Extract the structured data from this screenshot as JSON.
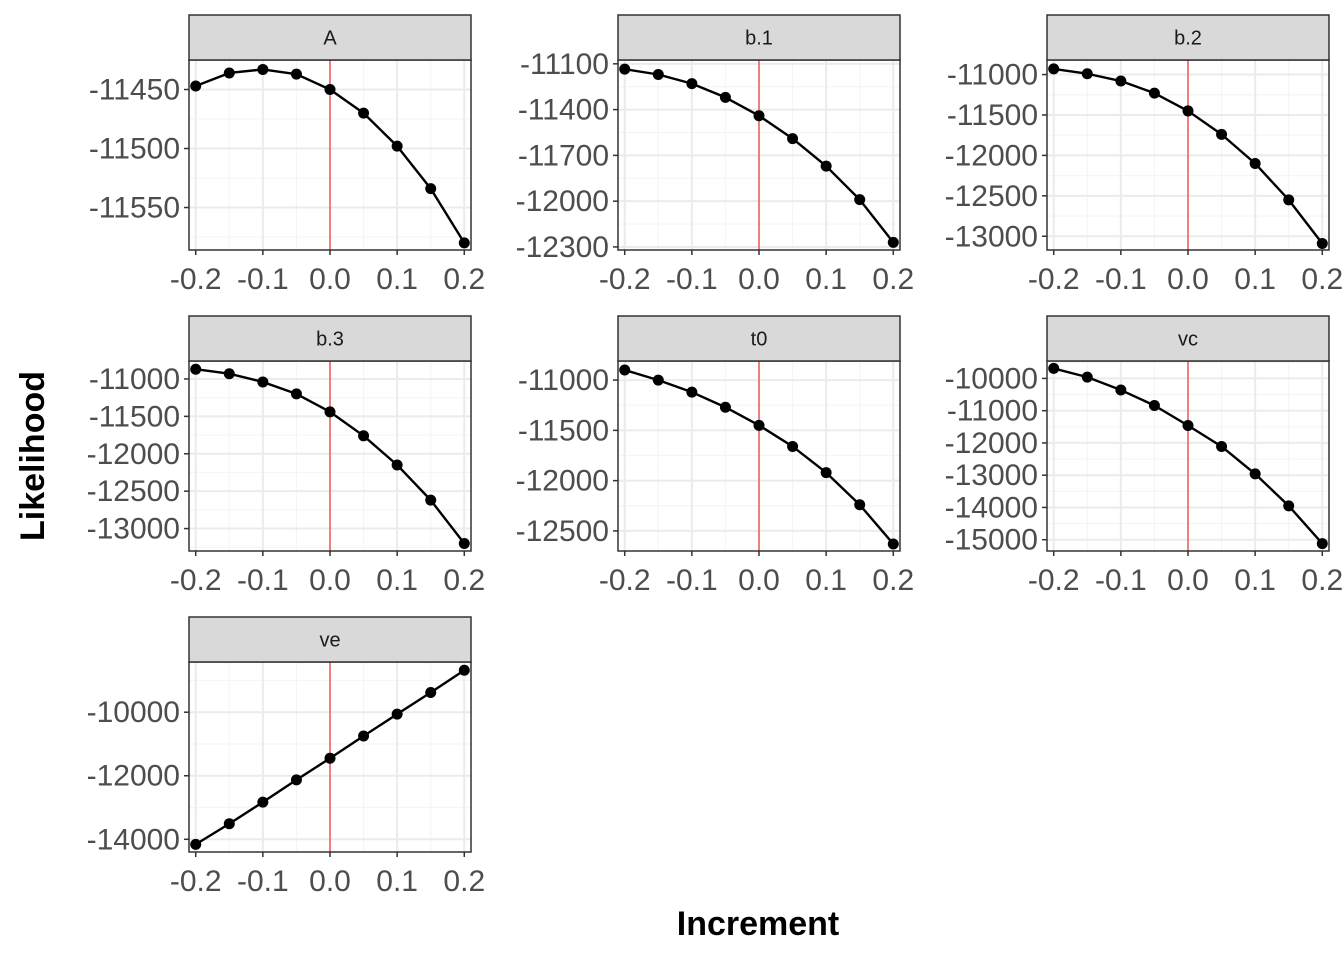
{
  "chart_data": {
    "type": "line",
    "layout": "facet_wrap",
    "xlabel": "Increment",
    "ylabel": "Likelihood",
    "grid": true,
    "reference_line_x": 0,
    "colors": {
      "line": "#000000",
      "points": "#000000",
      "reference": "#f08080",
      "strip_fill": "#d9d9d9",
      "strip_border": "#333333",
      "grid_major": "#ebebeb",
      "grid_minor": "#f5f5f5",
      "panel_border": "#333333"
    },
    "x": [
      -0.2,
      -0.15,
      -0.1,
      -0.05,
      0.0,
      0.05,
      0.1,
      0.15,
      0.2
    ],
    "x_tick_labels": [
      "-0.2",
      "-0.1",
      "0.0",
      "0.1",
      "0.2"
    ],
    "x_ticks": [
      -0.2,
      -0.1,
      0.0,
      0.1,
      0.2
    ],
    "xlim": [
      -0.21,
      0.21
    ],
    "panels": [
      {
        "name": "A",
        "values": [
          -11447,
          -11436,
          -11433,
          -11437,
          -11450,
          -11470,
          -11498,
          -11534,
          -11580
        ],
        "ylim": [
          -11586,
          -11425
        ],
        "y_ticks": [
          -11450,
          -11500,
          -11550
        ],
        "y_tick_labels": [
          "-11450",
          "-11500",
          "-11550"
        ]
      },
      {
        "name": "b.1",
        "values": [
          -11135,
          -11170,
          -11230,
          -11320,
          -11440,
          -11590,
          -11770,
          -11990,
          -12270
        ],
        "ylim": [
          -12320,
          -11075
        ],
        "y_ticks": [
          -11100,
          -11400,
          -11700,
          -12000,
          -12300
        ],
        "y_tick_labels": [
          "-11100",
          "-11400",
          "-11700",
          "-12000",
          "-12300"
        ]
      },
      {
        "name": "b.2",
        "values": [
          -10930,
          -10990,
          -11080,
          -11230,
          -11450,
          -11740,
          -12100,
          -12550,
          -13090
        ],
        "ylim": [
          -13170,
          -10820
        ],
        "y_ticks": [
          -11000,
          -11500,
          -12000,
          -12500,
          -13000
        ],
        "y_tick_labels": [
          "-11000",
          "-11500",
          "-12000",
          "-12500",
          "-13000"
        ]
      },
      {
        "name": "b.3",
        "values": [
          -10870,
          -10930,
          -11040,
          -11200,
          -11440,
          -11760,
          -12150,
          -12620,
          -13200
        ],
        "ylim": [
          -13300,
          -10760
        ],
        "y_ticks": [
          -11000,
          -11500,
          -12000,
          -12500,
          -13000
        ],
        "y_tick_labels": [
          "-11000",
          "-11500",
          "-12000",
          "-12500",
          "-13000"
        ]
      },
      {
        "name": "t0",
        "values": [
          -10900,
          -11000,
          -11120,
          -11270,
          -11450,
          -11660,
          -11920,
          -12240,
          -12630
        ],
        "ylim": [
          -12700,
          -10810
        ],
        "y_ticks": [
          -11000,
          -11500,
          -12000,
          -12500
        ],
        "y_tick_labels": [
          "-11000",
          "-11500",
          "-12000",
          "-12500"
        ]
      },
      {
        "name": "vc",
        "values": [
          -9690,
          -9960,
          -10360,
          -10840,
          -11460,
          -12110,
          -12960,
          -13950,
          -15120
        ],
        "ylim": [
          -15350,
          -9460
        ],
        "y_ticks": [
          -10000,
          -11000,
          -12000,
          -13000,
          -14000,
          -15000
        ],
        "y_tick_labels": [
          "-10000",
          "-11000",
          "-12000",
          "-13000",
          "-14000",
          "-15000"
        ]
      },
      {
        "name": "ve",
        "values": [
          -14160,
          -13510,
          -12830,
          -12130,
          -11450,
          -10750,
          -10060,
          -9380,
          -8680
        ],
        "ylim": [
          -14400,
          -8420
        ],
        "y_ticks": [
          -10000,
          -12000,
          -14000
        ],
        "y_tick_labels": [
          "-10000",
          "-12000",
          "-14000"
        ]
      }
    ]
  }
}
